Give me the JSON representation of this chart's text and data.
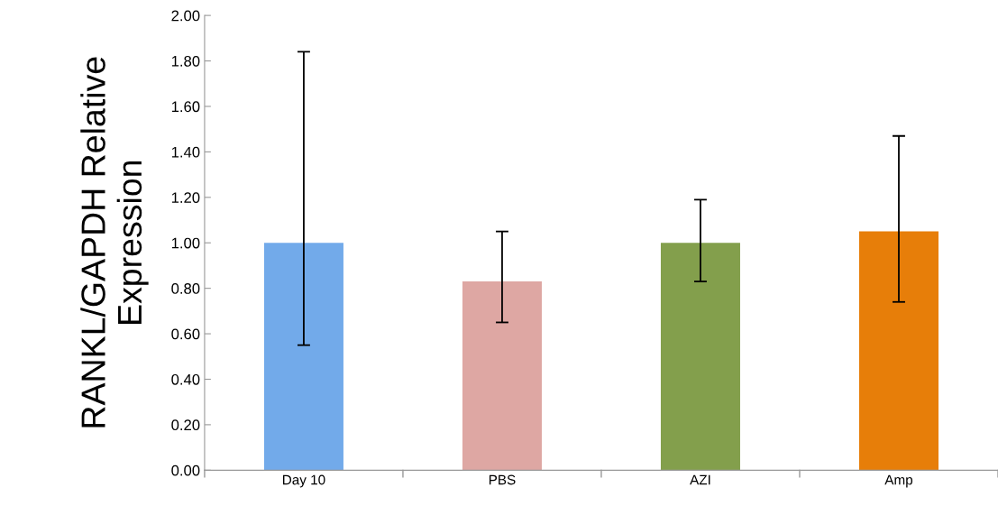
{
  "chart_data": {
    "type": "bar",
    "ylabel": "RANKL/GAPDH Relative\nExpression",
    "categories": [
      "Day 10",
      "PBS",
      "AZI",
      "Amp"
    ],
    "values": [
      1.0,
      0.83,
      1.0,
      1.05
    ],
    "colors": [
      "#72aaea",
      "#dea7a3",
      "#839f4c",
      "#e77e09"
    ],
    "errors": [
      [
        0.55,
        1.84
      ],
      [
        0.65,
        1.05
      ],
      [
        0.83,
        1.19
      ],
      [
        0.74,
        1.47
      ]
    ],
    "ylim": [
      0,
      2
    ],
    "yticks": [
      {
        "value": 0,
        "label": "0.00"
      },
      {
        "value": 0.2,
        "label": "0.20"
      },
      {
        "value": 0.4,
        "label": "0.40"
      },
      {
        "value": 0.6,
        "label": "0.60"
      },
      {
        "value": 0.8,
        "label": "0.80"
      },
      {
        "value": 1.0,
        "label": "1.00"
      },
      {
        "value": 1.2,
        "label": "1.20"
      },
      {
        "value": 1.4,
        "label": "1.40"
      },
      {
        "value": 1.6,
        "label": "1.60"
      },
      {
        "value": 1.8,
        "label": "1.80"
      },
      {
        "value": 2.0,
        "label": "2.00"
      }
    ],
    "grid": false,
    "legend": false
  }
}
